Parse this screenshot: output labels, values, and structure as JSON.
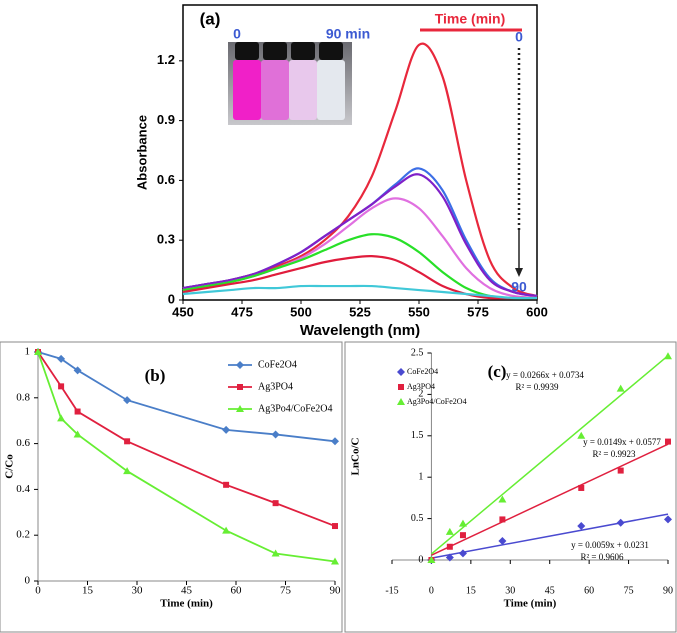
{
  "chart_data": [
    {
      "type": "spectra",
      "label": "(a)",
      "xlabel": "Wavelength (nm)",
      "ylabel": "Absorbance",
      "xlim": [
        450,
        600
      ],
      "xticks": [
        450,
        475,
        500,
        525,
        550,
        575,
        600
      ],
      "ylim": [
        0,
        1.48
      ],
      "yticks": [
        0,
        0.3,
        0.6,
        0.9,
        1.2
      ],
      "annotations": [
        "0",
        "90 min",
        "Time (min)",
        "0",
        "90"
      ],
      "x": [
        450,
        460,
        470,
        480,
        490,
        500,
        510,
        520,
        530,
        540,
        550,
        560,
        570,
        580,
        590,
        600
      ],
      "series": [
        {
          "color": "#e8283c",
          "values": [
            0.06,
            0.08,
            0.1,
            0.13,
            0.17,
            0.22,
            0.3,
            0.42,
            0.62,
            0.95,
            1.28,
            1.12,
            0.6,
            0.2,
            0.06,
            0.02
          ]
        },
        {
          "color": "#3c6ee6",
          "values": [
            0.06,
            0.08,
            0.1,
            0.13,
            0.18,
            0.24,
            0.32,
            0.4,
            0.48,
            0.58,
            0.66,
            0.55,
            0.3,
            0.11,
            0.04,
            0.02
          ]
        },
        {
          "color": "#8020c8",
          "values": [
            0.06,
            0.08,
            0.1,
            0.13,
            0.18,
            0.24,
            0.32,
            0.4,
            0.48,
            0.57,
            0.63,
            0.52,
            0.28,
            0.1,
            0.04,
            0.02
          ]
        },
        {
          "color": "#e070e0",
          "values": [
            0.05,
            0.07,
            0.09,
            0.12,
            0.16,
            0.21,
            0.28,
            0.37,
            0.46,
            0.51,
            0.46,
            0.32,
            0.16,
            0.06,
            0.02,
            0.01
          ]
        },
        {
          "color": "#28e028",
          "values": [
            0.05,
            0.07,
            0.09,
            0.12,
            0.16,
            0.2,
            0.25,
            0.3,
            0.33,
            0.31,
            0.24,
            0.14,
            0.06,
            0.02,
            0.01,
            0.01
          ]
        },
        {
          "color": "#e01c3c",
          "values": [
            0.04,
            0.06,
            0.08,
            0.1,
            0.13,
            0.16,
            0.19,
            0.21,
            0.22,
            0.2,
            0.14,
            0.07,
            0.03,
            0.01,
            0.01,
            0.01
          ]
        },
        {
          "color": "#40c8d8",
          "values": [
            0.03,
            0.04,
            0.05,
            0.06,
            0.06,
            0.07,
            0.07,
            0.07,
            0.07,
            0.06,
            0.05,
            0.04,
            0.03,
            0.02,
            0.01,
            0.01
          ]
        }
      ]
    },
    {
      "type": "line",
      "label": "(b)",
      "xlabel": "Time (min)",
      "ylabel": "C/Co",
      "xlim": [
        0,
        90
      ],
      "xticks": [
        0,
        15,
        30,
        45,
        60,
        75,
        90
      ],
      "ylim": [
        0,
        1
      ],
      "yticks": [
        0,
        0.2,
        0.4,
        0.6,
        0.8,
        1
      ],
      "x": [
        0,
        7,
        12,
        27,
        57,
        72,
        90
      ],
      "series": [
        {
          "name": "CoFe2O4",
          "color": "#4a7ec8",
          "marker": "diamond",
          "values": [
            1,
            0.97,
            0.92,
            0.79,
            0.66,
            0.64,
            0.61
          ]
        },
        {
          "name": "Ag3PO4",
          "color": "#e0203f",
          "marker": "square",
          "values": [
            1,
            0.85,
            0.74,
            0.61,
            0.42,
            0.34,
            0.24
          ]
        },
        {
          "name": "Ag3Po4/CoFe2O4",
          "color": "#66ee33",
          "marker": "triangle",
          "values": [
            1,
            0.71,
            0.64,
            0.48,
            0.22,
            0.12,
            0.085
          ]
        }
      ]
    },
    {
      "type": "scatter",
      "label": "(c)",
      "xlabel": "Time (min)",
      "ylabel": "LnCo/C",
      "xlim": [
        -15,
        90
      ],
      "xticks": [
        -15,
        0,
        15,
        30,
        45,
        60,
        75,
        90
      ],
      "ylim": [
        0,
        2.5
      ],
      "yticks": [
        0,
        0.5,
        1,
        1.5,
        2,
        2.5
      ],
      "x": [
        0,
        7,
        12,
        27,
        57,
        72,
        90
      ],
      "series": [
        {
          "name": "CoFe2O4",
          "color": "#4a4ad0",
          "marker": "diamond",
          "values": [
            0,
            0.03,
            0.08,
            0.23,
            0.41,
            0.45,
            0.49
          ],
          "equation": "y = 0.0059x + 0.0231",
          "r2": "R² = 0.9606",
          "slope": 0.0059,
          "intercept": 0.0231
        },
        {
          "name": "Ag3PO4",
          "color": "#e0203f",
          "marker": "square",
          "values": [
            0,
            0.16,
            0.3,
            0.49,
            0.87,
            1.08,
            1.43
          ],
          "equation": "y = 0.0149x + 0.0577",
          "r2": "R² = 0.9923",
          "slope": 0.0149,
          "intercept": 0.0577
        },
        {
          "name": "Ag3Po4/CoFe2O4",
          "color": "#66ee33",
          "marker": "triangle",
          "values": [
            0,
            0.34,
            0.44,
            0.73,
            1.5,
            2.07,
            2.46
          ],
          "equation": "y = 0.0266x + 0.0734",
          "r2": "R² = 0.9939",
          "slope": 0.0266,
          "intercept": 0.0734
        }
      ]
    }
  ]
}
